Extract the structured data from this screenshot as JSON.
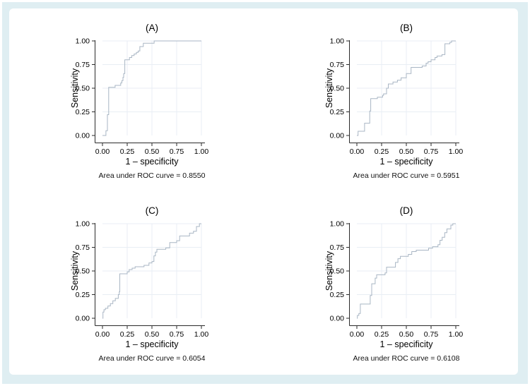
{
  "figure": {
    "background_color": "#dfeef2",
    "panel_color": "#ffffff",
    "curve_color": "#a9b6c4",
    "grid_color": "#e8eef4",
    "axis_color": "#2a2a2a",
    "text_color": "#000000"
  },
  "chart_data": [
    {
      "type": "line",
      "panel": "A",
      "title": "(A)",
      "xlabel": "1 – specificity",
      "ylabel": "Sensitivity",
      "caption": "Area under ROC curve = 0.8550",
      "auc": 0.855,
      "xlim": [
        0,
        1
      ],
      "ylim": [
        0,
        1
      ],
      "grid": true,
      "x_ticks": [
        "0.00",
        "0.25",
        "0.50",
        "0.75",
        "1.00"
      ],
      "y_ticks": [
        "0.00",
        "0.25",
        "0.50",
        "0.75",
        "1.00"
      ],
      "roc_points": [
        [
          0,
          0
        ],
        [
          0.035,
          0
        ],
        [
          0.035,
          0.05
        ],
        [
          0.05,
          0.05
        ],
        [
          0.05,
          0.22
        ],
        [
          0.063,
          0.22
        ],
        [
          0.063,
          0.51
        ],
        [
          0.128,
          0.51
        ],
        [
          0.128,
          0.53
        ],
        [
          0.184,
          0.53
        ],
        [
          0.184,
          0.555
        ],
        [
          0.196,
          0.555
        ],
        [
          0.196,
          0.58
        ],
        [
          0.207,
          0.58
        ],
        [
          0.207,
          0.615
        ],
        [
          0.214,
          0.615
        ],
        [
          0.214,
          0.655
        ],
        [
          0.226,
          0.655
        ],
        [
          0.226,
          0.8
        ],
        [
          0.273,
          0.8
        ],
        [
          0.273,
          0.825
        ],
        [
          0.296,
          0.825
        ],
        [
          0.296,
          0.845
        ],
        [
          0.32,
          0.845
        ],
        [
          0.32,
          0.862
        ],
        [
          0.343,
          0.862
        ],
        [
          0.343,
          0.878
        ],
        [
          0.361,
          0.878
        ],
        [
          0.361,
          0.893
        ],
        [
          0.378,
          0.893
        ],
        [
          0.378,
          0.94
        ],
        [
          0.413,
          0.94
        ],
        [
          0.413,
          0.975
        ],
        [
          0.522,
          0.975
        ],
        [
          0.522,
          1
        ],
        [
          1,
          1
        ]
      ]
    },
    {
      "type": "line",
      "panel": "B",
      "title": "(B)",
      "xlabel": "1 – specificity",
      "ylabel": "Sensitivity",
      "caption": "Area under ROC curve = 0.5951",
      "auc": 0.5951,
      "xlim": [
        0,
        1
      ],
      "ylim": [
        0,
        1
      ],
      "grid": true,
      "x_ticks": [
        "0.00",
        "0.25",
        "0.50",
        "0.75",
        "1.00"
      ],
      "y_ticks": [
        "0.00",
        "0.25",
        "0.50",
        "0.75",
        "1.00"
      ],
      "roc_points": [
        [
          0,
          0
        ],
        [
          0.012,
          0
        ],
        [
          0.012,
          0.045
        ],
        [
          0.078,
          0.045
        ],
        [
          0.078,
          0.13
        ],
        [
          0.13,
          0.13
        ],
        [
          0.13,
          0.26
        ],
        [
          0.14,
          0.26
        ],
        [
          0.14,
          0.39
        ],
        [
          0.207,
          0.39
        ],
        [
          0.207,
          0.405
        ],
        [
          0.26,
          0.405
        ],
        [
          0.26,
          0.425
        ],
        [
          0.27,
          0.425
        ],
        [
          0.27,
          0.44
        ],
        [
          0.3,
          0.44
        ],
        [
          0.3,
          0.5
        ],
        [
          0.318,
          0.5
        ],
        [
          0.318,
          0.545
        ],
        [
          0.365,
          0.545
        ],
        [
          0.365,
          0.565
        ],
        [
          0.41,
          0.565
        ],
        [
          0.41,
          0.585
        ],
        [
          0.447,
          0.585
        ],
        [
          0.447,
          0.61
        ],
        [
          0.5,
          0.61
        ],
        [
          0.5,
          0.655
        ],
        [
          0.548,
          0.655
        ],
        [
          0.548,
          0.72
        ],
        [
          0.66,
          0.72
        ],
        [
          0.66,
          0.735
        ],
        [
          0.7,
          0.735
        ],
        [
          0.7,
          0.765
        ],
        [
          0.72,
          0.765
        ],
        [
          0.72,
          0.78
        ],
        [
          0.75,
          0.78
        ],
        [
          0.75,
          0.8
        ],
        [
          0.79,
          0.8
        ],
        [
          0.79,
          0.825
        ],
        [
          0.81,
          0.825
        ],
        [
          0.81,
          0.84
        ],
        [
          0.86,
          0.84
        ],
        [
          0.86,
          0.855
        ],
        [
          0.89,
          0.855
        ],
        [
          0.89,
          0.97
        ],
        [
          0.94,
          0.97
        ],
        [
          0.94,
          0.985
        ],
        [
          0.957,
          0.985
        ],
        [
          0.957,
          1
        ],
        [
          1,
          1
        ]
      ]
    },
    {
      "type": "line",
      "panel": "C",
      "title": "(C)",
      "xlabel": "1 – specificity",
      "ylabel": "Sensitivity",
      "caption": "Area under ROC curve = 0.6054",
      "auc": 0.6054,
      "xlim": [
        0,
        1
      ],
      "ylim": [
        0,
        1
      ],
      "grid": true,
      "x_ticks": [
        "0.00",
        "0.25",
        "0.50",
        "0.75",
        "1.00"
      ],
      "y_ticks": [
        "0.00",
        "0.25",
        "0.50",
        "0.75",
        "1.00"
      ],
      "roc_points": [
        [
          0,
          0
        ],
        [
          0.005,
          0
        ],
        [
          0.005,
          0.065
        ],
        [
          0.015,
          0.065
        ],
        [
          0.015,
          0.09
        ],
        [
          0.03,
          0.09
        ],
        [
          0.03,
          0.105
        ],
        [
          0.055,
          0.105
        ],
        [
          0.055,
          0.13
        ],
        [
          0.08,
          0.13
        ],
        [
          0.08,
          0.155
        ],
        [
          0.105,
          0.155
        ],
        [
          0.105,
          0.185
        ],
        [
          0.13,
          0.185
        ],
        [
          0.13,
          0.21
        ],
        [
          0.16,
          0.21
        ],
        [
          0.16,
          0.25
        ],
        [
          0.17,
          0.25
        ],
        [
          0.17,
          0.28
        ],
        [
          0.175,
          0.28
        ],
        [
          0.175,
          0.47
        ],
        [
          0.25,
          0.47
        ],
        [
          0.25,
          0.49
        ],
        [
          0.27,
          0.49
        ],
        [
          0.27,
          0.515
        ],
        [
          0.3,
          0.515
        ],
        [
          0.3,
          0.53
        ],
        [
          0.33,
          0.53
        ],
        [
          0.33,
          0.545
        ],
        [
          0.42,
          0.545
        ],
        [
          0.42,
          0.56
        ],
        [
          0.47,
          0.56
        ],
        [
          0.47,
          0.585
        ],
        [
          0.5,
          0.585
        ],
        [
          0.5,
          0.6
        ],
        [
          0.52,
          0.6
        ],
        [
          0.52,
          0.66
        ],
        [
          0.535,
          0.66
        ],
        [
          0.535,
          0.7
        ],
        [
          0.55,
          0.7
        ],
        [
          0.55,
          0.73
        ],
        [
          0.64,
          0.73
        ],
        [
          0.64,
          0.745
        ],
        [
          0.68,
          0.745
        ],
        [
          0.68,
          0.8
        ],
        [
          0.75,
          0.8
        ],
        [
          0.75,
          0.82
        ],
        [
          0.78,
          0.82
        ],
        [
          0.78,
          0.87
        ],
        [
          0.88,
          0.87
        ],
        [
          0.88,
          0.9
        ],
        [
          0.92,
          0.9
        ],
        [
          0.92,
          0.92
        ],
        [
          0.95,
          0.92
        ],
        [
          0.95,
          0.97
        ],
        [
          0.98,
          0.97
        ],
        [
          0.98,
          1
        ],
        [
          1,
          1
        ]
      ]
    },
    {
      "type": "line",
      "panel": "D",
      "title": "(D)",
      "xlabel": "1 – specificity",
      "ylabel": "Sensitivity",
      "caption": "Area under ROC curve = 0.6108",
      "auc": 0.6108,
      "xlim": [
        0,
        1
      ],
      "ylim": [
        0,
        1
      ],
      "grid": true,
      "x_ticks": [
        "0.00",
        "0.25",
        "0.50",
        "0.75",
        "1.00"
      ],
      "y_ticks": [
        "0.00",
        "0.25",
        "0.50",
        "0.75",
        "1.00"
      ],
      "roc_points": [
        [
          0,
          0
        ],
        [
          0.005,
          0
        ],
        [
          0.005,
          0.03
        ],
        [
          0.02,
          0.03
        ],
        [
          0.02,
          0.05
        ],
        [
          0.035,
          0.05
        ],
        [
          0.035,
          0.15
        ],
        [
          0.135,
          0.15
        ],
        [
          0.135,
          0.24
        ],
        [
          0.15,
          0.24
        ],
        [
          0.15,
          0.365
        ],
        [
          0.185,
          0.365
        ],
        [
          0.185,
          0.425
        ],
        [
          0.2,
          0.425
        ],
        [
          0.2,
          0.46
        ],
        [
          0.285,
          0.46
        ],
        [
          0.285,
          0.48
        ],
        [
          0.3,
          0.48
        ],
        [
          0.3,
          0.54
        ],
        [
          0.39,
          0.54
        ],
        [
          0.39,
          0.59
        ],
        [
          0.415,
          0.59
        ],
        [
          0.415,
          0.63
        ],
        [
          0.44,
          0.63
        ],
        [
          0.44,
          0.655
        ],
        [
          0.52,
          0.655
        ],
        [
          0.52,
          0.675
        ],
        [
          0.555,
          0.675
        ],
        [
          0.555,
          0.705
        ],
        [
          0.6,
          0.705
        ],
        [
          0.6,
          0.72
        ],
        [
          0.725,
          0.72
        ],
        [
          0.725,
          0.74
        ],
        [
          0.765,
          0.74
        ],
        [
          0.765,
          0.757
        ],
        [
          0.82,
          0.757
        ],
        [
          0.82,
          0.778
        ],
        [
          0.84,
          0.778
        ],
        [
          0.84,
          0.825
        ],
        [
          0.862,
          0.825
        ],
        [
          0.862,
          0.857
        ],
        [
          0.888,
          0.857
        ],
        [
          0.888,
          0.905
        ],
        [
          0.91,
          0.905
        ],
        [
          0.91,
          0.945
        ],
        [
          0.95,
          0.945
        ],
        [
          0.95,
          0.985
        ],
        [
          0.97,
          0.985
        ],
        [
          0.97,
          1
        ],
        [
          1,
          1
        ]
      ]
    }
  ]
}
